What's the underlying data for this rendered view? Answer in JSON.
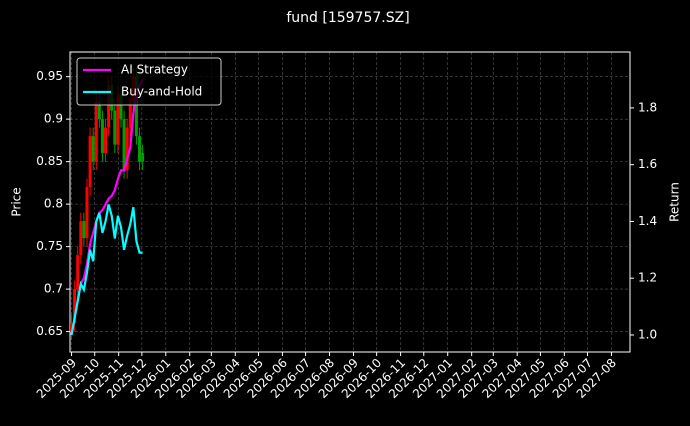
{
  "chart_data": {
    "type": "candlestick",
    "title": "fund [159757.SZ]",
    "y_label": "Price",
    "y2_label": "Return",
    "up_color": "#ff0000",
    "down_color": "#00a000",
    "x": [
      "2025-09-01",
      "2025-09-05",
      "2025-09-09",
      "2025-09-13",
      "2025-09-17",
      "2025-09-21",
      "2025-09-25",
      "2025-09-29",
      "2025-10-03",
      "2025-10-07",
      "2025-10-11",
      "2025-10-15",
      "2025-10-19",
      "2025-10-23",
      "2025-10-27",
      "2025-10-31",
      "2025-11-04",
      "2025-11-08",
      "2025-11-12",
      "2025-11-16",
      "2025-11-20",
      "2025-11-24",
      "2025-11-28",
      "2025-12-02"
    ],
    "open": [
      0.65,
      0.66,
      0.7,
      0.74,
      0.78,
      0.76,
      0.82,
      0.88,
      0.85,
      0.92,
      0.9,
      0.86,
      0.89,
      0.94,
      0.91,
      0.87,
      0.93,
      0.9,
      0.84,
      0.89,
      0.92,
      0.95,
      0.88,
      0.86
    ],
    "high": [
      0.67,
      0.71,
      0.75,
      0.79,
      0.79,
      0.83,
      0.89,
      0.89,
      0.93,
      0.93,
      0.91,
      0.9,
      0.95,
      0.95,
      0.92,
      0.94,
      0.94,
      0.91,
      0.9,
      0.93,
      0.96,
      0.96,
      0.89,
      0.87
    ],
    "low": [
      0.64,
      0.65,
      0.69,
      0.73,
      0.75,
      0.75,
      0.81,
      0.84,
      0.84,
      0.89,
      0.85,
      0.85,
      0.88,
      0.9,
      0.86,
      0.86,
      0.89,
      0.83,
      0.83,
      0.88,
      0.91,
      0.87,
      0.84,
      0.84
    ],
    "close": [
      0.66,
      0.7,
      0.74,
      0.78,
      0.76,
      0.82,
      0.88,
      0.85,
      0.92,
      0.9,
      0.86,
      0.89,
      0.94,
      0.91,
      0.87,
      0.93,
      0.9,
      0.84,
      0.89,
      0.92,
      0.95,
      0.88,
      0.85,
      0.85
    ],
    "series": [
      {
        "name": "AI Strategy",
        "color": "#ff00ff",
        "axis": "y2",
        "values": [
          1.0,
          1.06,
          1.12,
          1.18,
          1.2,
          1.25,
          1.32,
          1.36,
          1.4,
          1.43,
          1.44,
          1.46,
          1.48,
          1.49,
          1.51,
          1.55,
          1.58,
          1.58,
          1.62,
          1.66,
          1.78,
          1.85,
          1.88,
          1.9
        ]
      },
      {
        "name": "Buy-and-Hold",
        "color": "#00ffff",
        "axis": "y2",
        "values": [
          1.0,
          1.06,
          1.12,
          1.18,
          1.16,
          1.22,
          1.3,
          1.26,
          1.4,
          1.43,
          1.36,
          1.4,
          1.46,
          1.42,
          1.34,
          1.42,
          1.38,
          1.3,
          1.35,
          1.39,
          1.45,
          1.33,
          1.29,
          1.29
        ]
      }
    ],
    "xlim": [
      "2025-08-30",
      "2027-08-25"
    ],
    "xticks": [
      "2025-09",
      "2025-10",
      "2025-11",
      "2025-12",
      "2026-01",
      "2026-02",
      "2026-03",
      "2026-04",
      "2026-05",
      "2026-06",
      "2026-07",
      "2026-08",
      "2026-09",
      "2026-10",
      "2026-11",
      "2026-12",
      "2027-01",
      "2027-02",
      "2027-03",
      "2027-04",
      "2027-05",
      "2027-06",
      "2027-07",
      "2027-08"
    ],
    "ylim": [
      0.626,
      0.979
    ],
    "yticks": [
      0.65,
      0.7,
      0.75,
      0.8,
      0.85,
      0.9,
      0.95
    ],
    "y2lim": [
      0.94,
      1.997
    ],
    "y2ticks": [
      {
        "value": 1.0,
        "label": "1.0"
      },
      {
        "value": 1.2,
        "label": "1.2"
      },
      {
        "value": 1.4,
        "label": "1.4"
      },
      {
        "value": 1.6,
        "label": "1.6"
      },
      {
        "value": 1.8,
        "label": "1.8"
      }
    ],
    "grid": true,
    "legend": "upper left"
  }
}
